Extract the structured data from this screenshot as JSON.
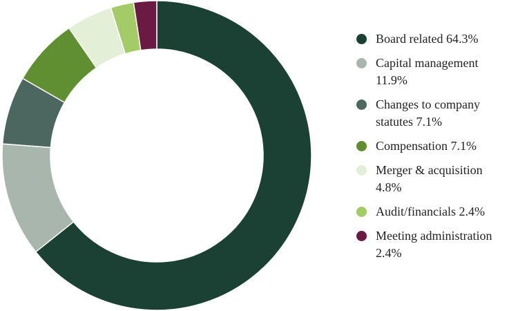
{
  "chart_data": {
    "type": "pie",
    "variant": "donut",
    "categories": [
      "Board related",
      "Capital management",
      "Changes to company statutes",
      "Compensation",
      "Merger & acquisition",
      "Audit/financials",
      "Meeting administration"
    ],
    "values": [
      64.3,
      11.9,
      7.1,
      7.1,
      4.8,
      2.4,
      2.4
    ],
    "unit": "%",
    "colors": [
      "#1b4034",
      "#a8b6ae",
      "#4c6760",
      "#5f8f30",
      "#e3efd6",
      "#a3cc68",
      "#6b1a43"
    ],
    "start_angle": "12 o'clock",
    "direction": "clockwise",
    "legend_position": "right",
    "legend_labels": [
      "Board related 64.3%",
      "Capital management\n11.9%",
      "Changes to company\nstatutes  7.1%",
      "Compensation  7.1%",
      "Merger & acquisition\n4.8%",
      "Audit/financials 2.4%",
      "Meeting administration\n2.4%"
    ]
  }
}
